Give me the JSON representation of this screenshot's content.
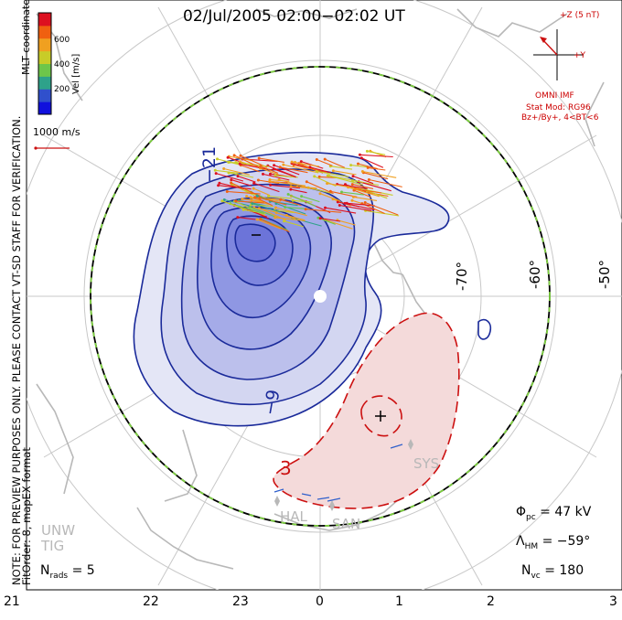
{
  "header": {
    "title": "02/Jul/2005 02:00−02:02 UT"
  },
  "colorbar": {
    "unit": "Vel [m/s]",
    "ticks": [
      "600",
      "400",
      "200"
    ],
    "colors": [
      "#1010dd",
      "#3050cc",
      "#2ea28a",
      "#6ec64a",
      "#c8cc28",
      "#f0a020",
      "#f06010",
      "#dd1020"
    ]
  },
  "vector_scale": {
    "label": "1000 m/s"
  },
  "side_text": {
    "line1": "NOTE: FOR PREVIEW PURPOSES ONLY. PLEASE CONTACT VT-SD STAFF FOR VERIFICATION.",
    "line2": "FitOrder: 8, mapEX format",
    "coords": "MLT coordinates"
  },
  "imf": {
    "axis_z": "+Z (5 nT)",
    "axis_y": "+Y",
    "source": "OMNI IMF",
    "model": "Stat Mod: RG96",
    "conditions": "Bz+/By+, 4<BT<6"
  },
  "latitudes": [
    "-70°",
    "-60°",
    "-50°"
  ],
  "contour_labels": {
    "neg1": "−21",
    "neg2": "−9",
    "pos1": "3"
  },
  "radars": [
    "HAL",
    "SAN",
    "SYS",
    "UNW",
    "TIG"
  ],
  "stats": {
    "phi_pc_label": "Φ",
    "phi_pc_sub": "pc",
    "phi_pc_value": "= 47 kV",
    "lambda_label": "Λ",
    "lambda_sub": "HM",
    "lambda_value": "= −59°",
    "nvc_label": "N",
    "nvc_sub": "vc",
    "nvc_value": "= 180",
    "nrads_label": "N",
    "nrads_sub": "rads",
    "nrads_value": "= 5"
  },
  "mlt_labels": [
    "21",
    "22",
    "23",
    "0",
    "1",
    "2",
    "3"
  ],
  "colors": {
    "negative_line": "#1a2a9a",
    "positive_line": "#cc1010",
    "hmb_dash": "#7ed040",
    "grid": "#c8c8c8",
    "coast": "#b8b8b8"
  }
}
